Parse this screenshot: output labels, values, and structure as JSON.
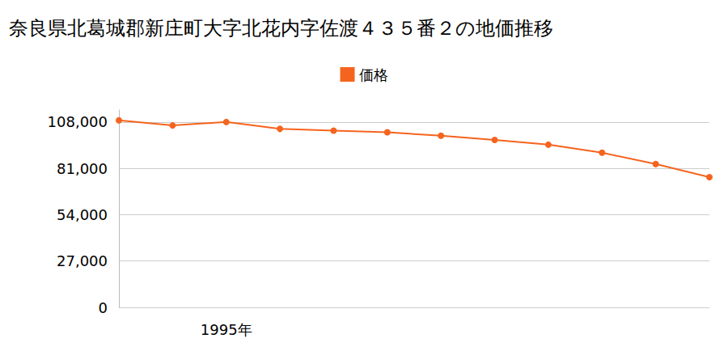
{
  "chart_data": {
    "type": "line",
    "title": "奈良県北葛城郡新庄町大字北花内字佐渡４３５番２の地価推移",
    "categories": [
      null,
      null,
      "1995年",
      null,
      null,
      null,
      null,
      null,
      null,
      null,
      null,
      null
    ],
    "series": [
      {
        "name": "価格",
        "color": "#f5641e",
        "marker": "circle",
        "values": [
          109000,
          106000,
          108000,
          104000,
          103000,
          102000,
          100000,
          97600,
          94800,
          90100,
          83500,
          75900
        ]
      }
    ],
    "ylim": [
      0,
      115000
    ],
    "yticks": [
      0,
      {
        "value": 27000,
        "label": "27,000"
      },
      {
        "value": 54000,
        "label": "54,000"
      },
      {
        "value": 81000,
        "label": "81,000"
      },
      {
        "value": 108000,
        "label": "108,000"
      }
    ],
    "grid": true,
    "legend": "top"
  }
}
